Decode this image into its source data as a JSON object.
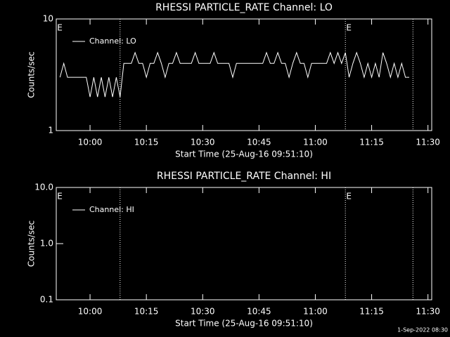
{
  "chart_data": [
    {
      "type": "line",
      "title": "RHESSI PARTICLE_RATE Channel: LO",
      "ylabel": "Counts/sec",
      "xlabel": "Start Time (25-Aug-16 09:51:10)",
      "log_y": true,
      "ylim": [
        1,
        10
      ],
      "yticks": [
        1,
        10
      ],
      "xlim": [
        "09:51",
        "11:31"
      ],
      "xticks": [
        "10:00",
        "10:15",
        "10:30",
        "10:45",
        "11:00",
        "11:15",
        "11:30"
      ],
      "legend": "top-left",
      "vlines": [
        "10:08",
        "11:08",
        "11:26"
      ],
      "annotations": [
        {
          "x": "09:51",
          "text": "E"
        },
        {
          "x": "11:08",
          "text": "E"
        }
      ],
      "series": [
        {
          "name": "Channel: LO",
          "color": "#ffffff",
          "x": [
            "09:52",
            "09:53",
            "09:54",
            "09:55",
            "09:56",
            "09:57",
            "09:58",
            "09:59",
            "10:00",
            "10:01",
            "10:02",
            "10:03",
            "10:04",
            "10:05",
            "10:06",
            "10:07",
            "10:08",
            "10:09",
            "10:10",
            "10:11",
            "10:12",
            "10:13",
            "10:14",
            "10:15",
            "10:16",
            "10:17",
            "10:18",
            "10:19",
            "10:20",
            "10:21",
            "10:22",
            "10:23",
            "10:24",
            "10:25",
            "10:26",
            "10:27",
            "10:28",
            "10:29",
            "10:30",
            "10:31",
            "10:32",
            "10:33",
            "10:34",
            "10:35",
            "10:36",
            "10:37",
            "10:38",
            "10:39",
            "10:40",
            "10:41",
            "10:42",
            "10:43",
            "10:44",
            "10:45",
            "10:46",
            "10:47",
            "10:48",
            "10:49",
            "10:50",
            "10:51",
            "10:52",
            "10:53",
            "10:54",
            "10:55",
            "10:56",
            "10:57",
            "10:58",
            "10:59",
            "11:00",
            "11:01",
            "11:02",
            "11:03",
            "11:04",
            "11:05",
            "11:06",
            "11:07",
            "11:08",
            "11:09",
            "11:10",
            "11:11",
            "11:12",
            "11:13",
            "11:14",
            "11:15",
            "11:16",
            "11:17",
            "11:18",
            "11:19",
            "11:20",
            "11:21",
            "11:22",
            "11:23",
            "11:24",
            "11:25"
          ],
          "values": [
            3,
            4,
            3,
            3,
            3,
            3,
            3,
            3,
            2,
            3,
            2,
            3,
            2,
            3,
            2,
            3,
            2,
            4,
            4,
            4,
            5,
            4,
            4,
            3,
            4,
            4,
            5,
            4,
            3,
            4,
            4,
            5,
            4,
            4,
            4,
            4,
            5,
            4,
            4,
            4,
            4,
            5,
            4,
            4,
            4,
            4,
            3,
            4,
            4,
            4,
            4,
            4,
            4,
            4,
            4,
            5,
            4,
            4,
            5,
            4,
            4,
            3,
            4,
            5,
            4,
            4,
            3,
            4,
            4,
            4,
            4,
            4,
            5,
            4,
            5,
            4,
            5,
            3,
            4,
            5,
            4,
            3,
            4,
            3,
            4,
            3,
            5,
            4,
            3,
            4,
            3,
            4,
            3,
            3
          ]
        }
      ]
    },
    {
      "type": "line",
      "title": "RHESSI PARTICLE_RATE Channel: HI",
      "ylabel": "Counts/sec",
      "xlabel": "Start Time (25-Aug-16 09:51:10)",
      "log_y": true,
      "ylim": [
        0.1,
        10
      ],
      "yticks": [
        0.1,
        {
          "value": 1,
          "label": "1.0"
        },
        {
          "value": 10,
          "label": "10.0"
        }
      ],
      "xlim": [
        "09:51",
        "11:31"
      ],
      "xticks": [
        "10:00",
        "10:15",
        "10:30",
        "10:45",
        "11:00",
        "11:15",
        "11:30"
      ],
      "legend": "top-left",
      "vlines": [
        "10:08",
        "11:08",
        "11:26"
      ],
      "annotations": [
        {
          "x": "09:51",
          "text": "E"
        },
        {
          "x": "11:08",
          "text": "E"
        }
      ],
      "series": [
        {
          "name": "Channel: HI",
          "color": "#ffffff",
          "x": [],
          "values": []
        }
      ]
    }
  ],
  "footer": "1-Sep-2022 08:30"
}
